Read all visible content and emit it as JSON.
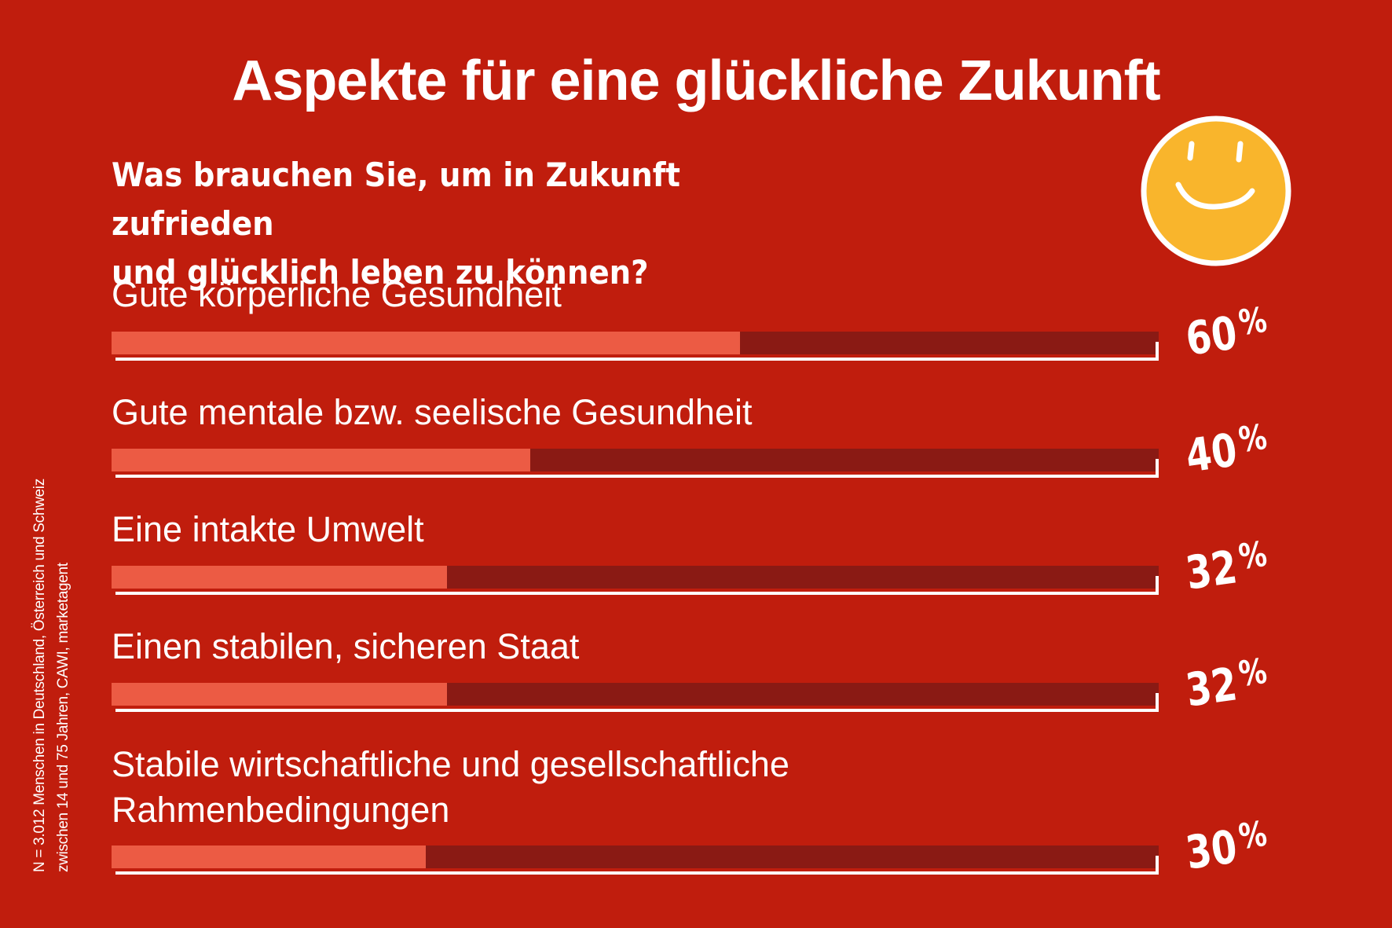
{
  "title": "Aspekte für eine glückliche Zukunft",
  "question": {
    "line1": "Was brauchen Sie, um in Zukunft zufrieden",
    "line2": "und glücklich leben zu können?"
  },
  "smiley_icon": "smiley-face-icon",
  "colors": {
    "background": "#C01D0D",
    "bar_fill": "#EC5B44",
    "bar_track": "#8A1A14",
    "smiley": "#F9B52C"
  },
  "percent_sign": "%",
  "source": {
    "line1": "N = 3.012 Menschen in Deutschland, Österreich und Schweiz",
    "line2": "zwischen 14 und 75 Jahren, CAWI, marketagent"
  },
  "chart_data": {
    "type": "bar",
    "orientation": "horizontal",
    "categories": [
      "Gute körperliche Gesundheit",
      "Gute mentale bzw. seelische Gesundheit",
      "Eine intakte Umwelt",
      "Einen stabilen, sicheren Staat",
      "Stabile wirtschaftliche und gesellschaftliche Rahmenbedingungen"
    ],
    "category_lines": [
      [
        "Gute körperliche Gesundheit"
      ],
      [
        "Gute mentale bzw. seelische Gesundheit"
      ],
      [
        "Eine intakte Umwelt"
      ],
      [
        "Einen stabilen, sicheren Staat"
      ],
      [
        "Stabile wirtschaftliche und gesellschaftliche",
        "Rahmenbedingungen"
      ]
    ],
    "values": [
      60,
      40,
      32,
      32,
      30
    ],
    "labels": [
      "60",
      "40",
      "32",
      "32",
      "30"
    ],
    "unit": "%",
    "xlim": [
      0,
      100
    ]
  }
}
